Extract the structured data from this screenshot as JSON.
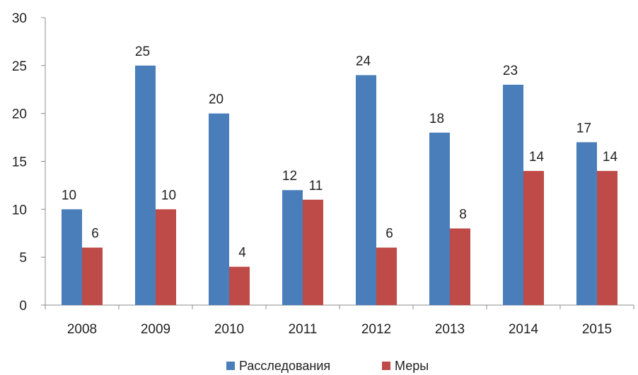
{
  "chart_data": {
    "type": "bar",
    "categories": [
      "2008",
      "2009",
      "2010",
      "2011",
      "2012",
      "2013",
      "2014",
      "2015"
    ],
    "series": [
      {
        "name": "Расследования",
        "color": "#4A7EBB",
        "values": [
          10,
          25,
          20,
          12,
          24,
          18,
          23,
          17
        ]
      },
      {
        "name": "Меры",
        "color": "#BE4B48",
        "values": [
          6,
          10,
          4,
          11,
          6,
          8,
          14,
          14
        ]
      }
    ],
    "ylim": [
      0,
      30
    ],
    "yticks": [
      0,
      5,
      10,
      15,
      20,
      25,
      30
    ],
    "grid": false,
    "legend_position": "bottom",
    "data_labels": true
  }
}
